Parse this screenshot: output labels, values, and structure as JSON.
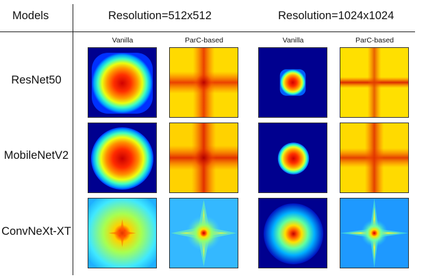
{
  "header": {
    "models": "Models",
    "resolutions": [
      "Resolution=512x512",
      "Resolution=1024x1024"
    ]
  },
  "subheaders": [
    "Vanilla",
    "ParC-based",
    "Vanilla",
    "ParC-based"
  ],
  "rows": [
    {
      "label": "ResNet50"
    },
    {
      "label": "MobileNetV2"
    },
    {
      "label": "ConvNeXt-XT"
    }
  ],
  "colors": {
    "jet_dark_blue": "#00008f",
    "jet_cyan": "#00ffff",
    "jet_yellow": "#ffff00",
    "jet_red": "#ff0000",
    "jet_dark_red": "#c00000"
  }
}
